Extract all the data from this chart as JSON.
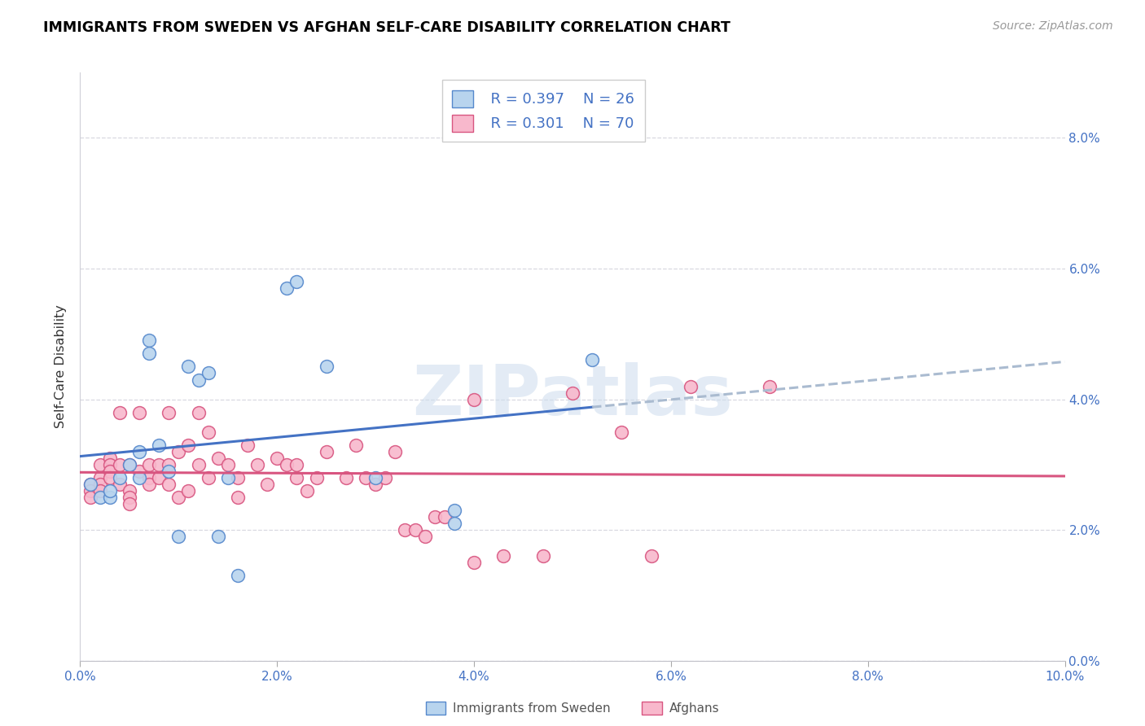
{
  "title": "IMMIGRANTS FROM SWEDEN VS AFGHAN SELF-CARE DISABILITY CORRELATION CHART",
  "source": "Source: ZipAtlas.com",
  "ylabel": "Self-Care Disability",
  "xlim": [
    0.0,
    0.1
  ],
  "ylim": [
    0.0,
    0.09
  ],
  "ytick_vals": [
    0.0,
    0.02,
    0.04,
    0.06,
    0.08
  ],
  "xtick_vals": [
    0.0,
    0.02,
    0.04,
    0.06,
    0.08,
    0.1
  ],
  "legend_r1": "0.397",
  "legend_n1": "26",
  "legend_r2": "0.301",
  "legend_n2": "70",
  "series1_face": "#b8d4ee",
  "series1_edge": "#5588cc",
  "series2_face": "#f8b8cc",
  "series2_edge": "#d85580",
  "line1_color": "#4472c4",
  "line2_color": "#d85580",
  "line_ext_color": "#aabbd0",
  "text_color": "#4472c4",
  "series1_label": "Immigrants from Sweden",
  "series2_label": "Afghans",
  "watermark": "ZIPatlas",
  "sweden_x": [
    0.001,
    0.002,
    0.003,
    0.003,
    0.004,
    0.005,
    0.006,
    0.006,
    0.007,
    0.007,
    0.008,
    0.009,
    0.01,
    0.011,
    0.012,
    0.013,
    0.014,
    0.015,
    0.016,
    0.021,
    0.022,
    0.025,
    0.03,
    0.038,
    0.038,
    0.052
  ],
  "sweden_y": [
    0.027,
    0.025,
    0.025,
    0.026,
    0.028,
    0.03,
    0.032,
    0.028,
    0.049,
    0.047,
    0.033,
    0.029,
    0.019,
    0.045,
    0.043,
    0.044,
    0.019,
    0.028,
    0.013,
    0.057,
    0.058,
    0.045,
    0.028,
    0.023,
    0.021,
    0.046
  ],
  "afghan_x": [
    0.001,
    0.001,
    0.001,
    0.002,
    0.002,
    0.002,
    0.002,
    0.003,
    0.003,
    0.003,
    0.003,
    0.004,
    0.004,
    0.004,
    0.005,
    0.005,
    0.005,
    0.005,
    0.006,
    0.006,
    0.007,
    0.007,
    0.007,
    0.008,
    0.008,
    0.009,
    0.009,
    0.009,
    0.01,
    0.01,
    0.011,
    0.011,
    0.012,
    0.012,
    0.013,
    0.013,
    0.014,
    0.015,
    0.016,
    0.016,
    0.017,
    0.018,
    0.019,
    0.02,
    0.021,
    0.022,
    0.022,
    0.023,
    0.024,
    0.025,
    0.027,
    0.028,
    0.029,
    0.03,
    0.031,
    0.032,
    0.033,
    0.034,
    0.035,
    0.036,
    0.037,
    0.04,
    0.04,
    0.043,
    0.047,
    0.05,
    0.055,
    0.058,
    0.062,
    0.07
  ],
  "afghan_y": [
    0.027,
    0.026,
    0.025,
    0.03,
    0.028,
    0.027,
    0.026,
    0.031,
    0.03,
    0.029,
    0.028,
    0.038,
    0.03,
    0.027,
    0.03,
    0.026,
    0.025,
    0.024,
    0.038,
    0.029,
    0.03,
    0.028,
    0.027,
    0.03,
    0.028,
    0.038,
    0.03,
    0.027,
    0.032,
    0.025,
    0.033,
    0.026,
    0.038,
    0.03,
    0.035,
    0.028,
    0.031,
    0.03,
    0.028,
    0.025,
    0.033,
    0.03,
    0.027,
    0.031,
    0.03,
    0.028,
    0.03,
    0.026,
    0.028,
    0.032,
    0.028,
    0.033,
    0.028,
    0.027,
    0.028,
    0.032,
    0.02,
    0.02,
    0.019,
    0.022,
    0.022,
    0.04,
    0.015,
    0.016,
    0.016,
    0.041,
    0.035,
    0.016,
    0.042,
    0.042
  ]
}
